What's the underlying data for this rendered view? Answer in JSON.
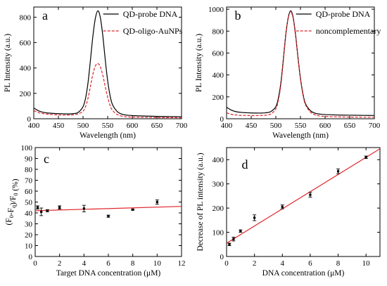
{
  "chart_data": [
    {
      "panel_label": "a",
      "type": "line",
      "xlabel": "Wavelength (nm)",
      "ylabel": "PL Intensity (a.u.)",
      "xlim": [
        400,
        700
      ],
      "ylim": [
        0,
        880
      ],
      "xticks": [
        400,
        450,
        500,
        550,
        600,
        650,
        700
      ],
      "yticks": [
        0,
        200,
        400,
        600,
        800
      ],
      "legend": "top-right",
      "series": [
        {
          "name": "QD-probe DNA",
          "color": "#000000",
          "style": "solid",
          "x": [
            400,
            410,
            420,
            430,
            440,
            450,
            460,
            470,
            480,
            490,
            500,
            505,
            510,
            515,
            520,
            525,
            530,
            535,
            540,
            545,
            550,
            555,
            560,
            570,
            580,
            590,
            600,
            620,
            640,
            660,
            680,
            700
          ],
          "y": [
            85,
            62,
            50,
            45,
            42,
            40,
            39,
            38,
            40,
            50,
            95,
            160,
            280,
            460,
            650,
            790,
            850,
            800,
            660,
            470,
            300,
            180,
            110,
            55,
            35,
            28,
            25,
            22,
            20,
            18,
            17,
            16
          ]
        },
        {
          "name": "QD-oligo-AuNPs",
          "color": "#e0242a",
          "style": "dashed",
          "x": [
            400,
            410,
            420,
            430,
            440,
            450,
            460,
            470,
            480,
            490,
            500,
            505,
            510,
            515,
            520,
            525,
            530,
            535,
            540,
            545,
            550,
            555,
            560,
            570,
            580,
            590,
            600,
            620,
            640,
            660,
            680,
            700
          ],
          "y": [
            65,
            48,
            40,
            35,
            32,
            30,
            29,
            29,
            31,
            38,
            60,
            95,
            160,
            255,
            350,
            415,
            435,
            410,
            345,
            255,
            170,
            105,
            65,
            32,
            20,
            15,
            13,
            11,
            10,
            9,
            9,
            8
          ]
        }
      ]
    },
    {
      "panel_label": "b",
      "type": "line",
      "xlabel": "Wavelength (nm)",
      "ylabel": "PL Intensity (a.u.)",
      "xlim": [
        400,
        700
      ],
      "ylim": [
        0,
        1020
      ],
      "xticks": [
        400,
        450,
        500,
        550,
        600,
        650,
        700
      ],
      "yticks": [
        0,
        200,
        400,
        600,
        800,
        1000
      ],
      "legend": "top-right",
      "series": [
        {
          "name": "QD-probe DNA",
          "color": "#000000",
          "style": "solid",
          "x": [
            400,
            410,
            420,
            430,
            440,
            450,
            460,
            470,
            480,
            490,
            500,
            505,
            510,
            515,
            520,
            525,
            530,
            535,
            540,
            545,
            550,
            555,
            560,
            570,
            580,
            590,
            600,
            620,
            640,
            660,
            680,
            700
          ],
          "y": [
            105,
            78,
            64,
            58,
            55,
            53,
            52,
            52,
            55,
            66,
            110,
            185,
            320,
            530,
            760,
            920,
            985,
            930,
            770,
            560,
            370,
            230,
            140,
            75,
            50,
            42,
            38,
            35,
            33,
            32,
            31,
            30
          ]
        },
        {
          "name": "noncomplementary",
          "color": "#e0242a",
          "style": "dashed",
          "x": [
            400,
            410,
            420,
            430,
            440,
            450,
            460,
            470,
            480,
            490,
            500,
            505,
            510,
            515,
            520,
            525,
            530,
            535,
            540,
            545,
            550,
            555,
            560,
            570,
            580,
            590,
            600,
            620,
            640,
            660,
            680,
            700
          ],
          "y": [
            55,
            40,
            34,
            31,
            30,
            29,
            29,
            30,
            33,
            44,
            90,
            165,
            300,
            515,
            750,
            915,
            975,
            920,
            760,
            550,
            360,
            220,
            130,
            62,
            35,
            25,
            21,
            18,
            16,
            15,
            14,
            14
          ]
        }
      ]
    },
    {
      "panel_label": "c",
      "type": "scatter",
      "xlabel": "Target DNA concentration (μM)",
      "ylabel": "(F0-Fq)/F0 (%)",
      "xlim": [
        0,
        12
      ],
      "ylim": [
        0,
        100
      ],
      "xticks": [
        0,
        2,
        4,
        6,
        8,
        10,
        12
      ],
      "yticks": [
        0,
        10,
        20,
        30,
        40,
        50,
        60,
        70,
        80,
        90,
        100
      ],
      "points": [
        {
          "x": 0.2,
          "y": 45,
          "err": 1.5
        },
        {
          "x": 0.5,
          "y": 41,
          "err": 3.5
        },
        {
          "x": 1.0,
          "y": 42,
          "err": 1.0
        },
        {
          "x": 2.0,
          "y": 45,
          "err": 1.5
        },
        {
          "x": 4.0,
          "y": 44,
          "err": 3.0
        },
        {
          "x": 6.0,
          "y": 37,
          "err": 1.0
        },
        {
          "x": 8.0,
          "y": 43,
          "err": 0.5
        },
        {
          "x": 10.0,
          "y": 50,
          "err": 2.0
        }
      ],
      "fit": {
        "x": [
          0,
          12
        ],
        "y": [
          42,
          46
        ],
        "color": "#e0242a"
      }
    },
    {
      "panel_label": "d",
      "type": "scatter",
      "xlabel": "DNA concentration (μM)",
      "ylabel": "Decrease of PL intensity (a.u.)",
      "xlim": [
        0,
        11
      ],
      "ylim": [
        0,
        450
      ],
      "xticks": [
        0,
        2,
        4,
        6,
        8,
        10
      ],
      "yticks": [
        0,
        100,
        200,
        300,
        400
      ],
      "points": [
        {
          "x": 0.2,
          "y": 50,
          "err": 5
        },
        {
          "x": 0.5,
          "y": 72,
          "err": 8
        },
        {
          "x": 1.0,
          "y": 105,
          "err": 5
        },
        {
          "x": 2.0,
          "y": 160,
          "err": 12
        },
        {
          "x": 4.0,
          "y": 205,
          "err": 8
        },
        {
          "x": 6.0,
          "y": 255,
          "err": 10
        },
        {
          "x": 8.0,
          "y": 352,
          "err": 10
        },
        {
          "x": 10.0,
          "y": 410,
          "err": 5
        }
      ],
      "fit": {
        "x": [
          0,
          11
        ],
        "y": [
          55,
          445
        ],
        "color": "#e0242a"
      }
    }
  ]
}
